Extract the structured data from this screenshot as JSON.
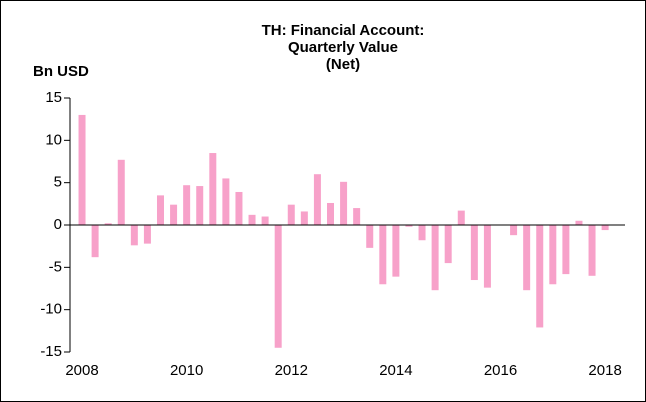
{
  "chart_data": {
    "type": "bar",
    "title": [
      "TH: Financial Account:",
      "Quarterly Value",
      "(Net)"
    ],
    "y_label": "Bn USD",
    "color": "#f7a1c9",
    "x": [
      2008,
      2008.25,
      2008.5,
      2008.75,
      2009,
      2009.25,
      2009.5,
      2009.75,
      2010,
      2010.25,
      2010.5,
      2010.75,
      2011,
      2011.25,
      2011.5,
      2011.75,
      2012,
      2012.25,
      2012.5,
      2012.75,
      2013,
      2013.25,
      2013.5,
      2013.75,
      2014,
      2014.25,
      2014.5,
      2014.75,
      2015,
      2015.25,
      2015.5,
      2015.75,
      2016,
      2016.25,
      2016.5,
      2016.75,
      2017,
      2017.25,
      2017.5,
      2017.75,
      2018
    ],
    "values": [
      13.0,
      -3.8,
      0.2,
      7.7,
      -2.4,
      -2.2,
      3.5,
      2.4,
      4.7,
      4.6,
      8.5,
      5.5,
      3.9,
      1.2,
      1.0,
      -14.5,
      2.4,
      1.6,
      6.0,
      2.6,
      5.1,
      2.0,
      -2.7,
      -7.0,
      -6.1,
      -0.2,
      -1.8,
      -7.7,
      -4.5,
      1.7,
      -6.5,
      -7.4,
      0,
      -1.2,
      -7.7,
      -12.1,
      -7.0,
      -5.8,
      0.5,
      -6.0,
      -0.6
    ],
    "xlim": [
      2007.77,
      2018.38
    ],
    "xticks": [
      2008,
      2010,
      2012,
      2014,
      2016,
      2018
    ],
    "ylim": [
      -15,
      15
    ],
    "yticks": [
      -15,
      -10,
      -5,
      0,
      5,
      10,
      15
    ]
  }
}
